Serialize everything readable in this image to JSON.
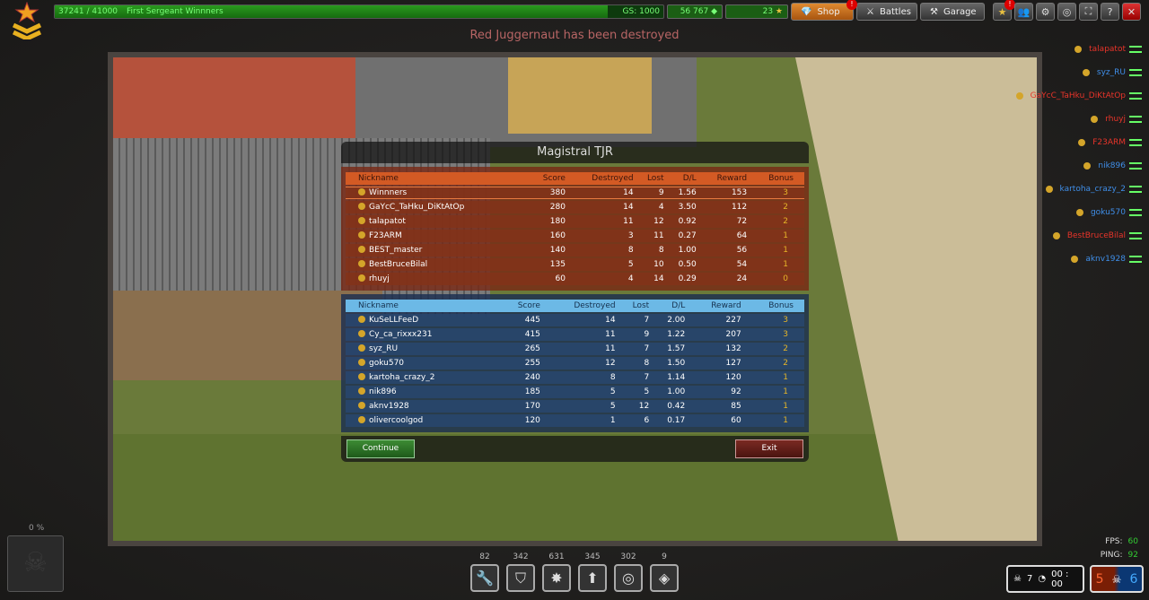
{
  "topbar": {
    "xp": "37241 / 41000",
    "xp_progress": 0.908,
    "rank_title": "First Sergeant Winnners",
    "gs": "GS: 1000",
    "crystals": "56 767",
    "stars": "23",
    "shop": "Shop",
    "battles": "Battles",
    "garage": "Garage"
  },
  "kill_message": "Red Juggernaut has been destroyed",
  "battle": {
    "map": "Magistral TJR",
    "columns": [
      "Nickname",
      "Score",
      "Destroyed",
      "Lost",
      "D/L",
      "Reward",
      "Bonus"
    ],
    "red": [
      [
        "Winnners",
        "380",
        "14",
        "9",
        "1.56",
        "153",
        "3"
      ],
      [
        "GaYcC_TaHku_DiKtAtOp",
        "280",
        "14",
        "4",
        "3.50",
        "112",
        "2"
      ],
      [
        "talapatot",
        "180",
        "11",
        "12",
        "0.92",
        "72",
        "2"
      ],
      [
        "F23ARM",
        "160",
        "3",
        "11",
        "0.27",
        "64",
        "1"
      ],
      [
        "BEST_master",
        "140",
        "8",
        "8",
        "1.00",
        "56",
        "1"
      ],
      [
        "BestBruceBilal",
        "135",
        "5",
        "10",
        "0.50",
        "54",
        "1"
      ],
      [
        "rhuyj",
        "60",
        "4",
        "14",
        "0.29",
        "24",
        "0"
      ]
    ],
    "blue": [
      [
        "KuSeLLFeeD",
        "445",
        "14",
        "7",
        "2.00",
        "227",
        "3"
      ],
      [
        "Cy_ca_rixxx231",
        "415",
        "11",
        "9",
        "1.22",
        "207",
        "3"
      ],
      [
        "syz_RU",
        "265",
        "11",
        "7",
        "1.57",
        "132",
        "2"
      ],
      [
        "goku570",
        "255",
        "12",
        "8",
        "1.50",
        "127",
        "2"
      ],
      [
        "kartoha_crazy_2",
        "240",
        "8",
        "7",
        "1.14",
        "120",
        "1"
      ],
      [
        "nik896",
        "185",
        "5",
        "5",
        "1.00",
        "92",
        "1"
      ],
      [
        "aknv1928",
        "170",
        "5",
        "12",
        "0.42",
        "85",
        "1"
      ],
      [
        "olivercoolgod",
        "120",
        "1",
        "6",
        "0.17",
        "60",
        "1"
      ]
    ],
    "continue": "Continue",
    "exit": "Exit"
  },
  "feed": [
    {
      "name": "talapatot",
      "team": "red"
    },
    {
      "name": "syz_RU",
      "team": "blue"
    },
    {
      "name": "GaYcC_TaHku_DiKtAtOp",
      "team": "red"
    },
    {
      "name": "rhuyj",
      "team": "red"
    },
    {
      "name": "F23ARM",
      "team": "red"
    },
    {
      "name": "nik896",
      "team": "blue"
    },
    {
      "name": "kartoha_crazy_2",
      "team": "blue"
    },
    {
      "name": "goku570",
      "team": "blue"
    },
    {
      "name": "BestBruceBilal",
      "team": "red"
    },
    {
      "name": "aknv1928",
      "team": "blue"
    }
  ],
  "supplies": [
    {
      "icon": "wrench-icon",
      "count": "82"
    },
    {
      "icon": "shield-icon",
      "count": "342"
    },
    {
      "icon": "damage-icon",
      "count": "631"
    },
    {
      "icon": "speed-arrow-icon",
      "count": "345"
    },
    {
      "icon": "mine-icon",
      "count": "302"
    },
    {
      "icon": "gold-box-icon",
      "count": "9"
    }
  ],
  "mine_percent": "0 %",
  "fps_label": "FPS:",
  "fps": "60",
  "ping_label": "PING:",
  "ping": "92",
  "stats": {
    "kills": "7",
    "time": "00 : 00"
  },
  "score": {
    "red": "5",
    "blue": "6"
  },
  "colors": {
    "red_team": "#d35a24",
    "blue_team": "#6cb9e6",
    "feed_red": "#e8342a",
    "feed_blue": "#3f8ee8"
  }
}
